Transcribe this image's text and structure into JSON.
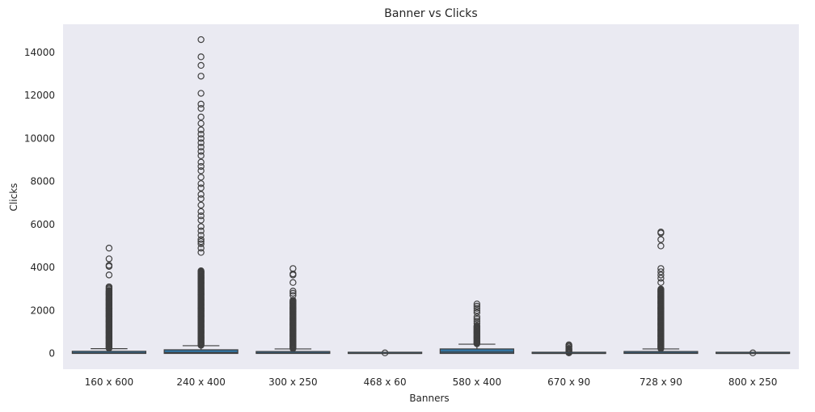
{
  "chart_data": {
    "type": "box",
    "title": "Banner vs Clicks",
    "xlabel": "Banners",
    "ylabel": "Clicks",
    "ylim": [
      -800,
      15000
    ],
    "yticks": [
      0,
      2000,
      4000,
      6000,
      8000,
      10000,
      12000,
      14000
    ],
    "grid": false,
    "categories": [
      "160 x 600",
      "240 x 400",
      "300 x 250",
      "468 x 60",
      "580 x 400",
      "670 x 90",
      "728 x 90",
      "800 x 250"
    ],
    "colors": {
      "plot_bg": "#eaeaf2",
      "box_fill": "#3274a1",
      "line": "#3f3f3f"
    },
    "boxes": [
      {
        "q1": 0,
        "median": 20,
        "q3": 100,
        "whisker_low": 0,
        "whisker_high": 220,
        "outlier_range": [
          240,
          2950
        ],
        "outliers": [
          3000,
          3050,
          3100,
          3650,
          4050,
          4100,
          4400,
          4900
        ]
      },
      {
        "q1": 0,
        "median": 40,
        "q3": 170,
        "whisker_low": 0,
        "whisker_high": 360,
        "outlier_range": [
          380,
          3850
        ],
        "outliers": [
          4700,
          4900,
          5100,
          5200,
          5300,
          5500,
          5700,
          5900,
          6200,
          6400,
          6600,
          6900,
          7200,
          7400,
          7700,
          7900,
          8200,
          8500,
          8700,
          8900,
          9200,
          9400,
          9600,
          9800,
          10000,
          10200,
          10400,
          10700,
          11000,
          11400,
          11600,
          12100,
          12900,
          13400,
          13800,
          14600
        ]
      },
      {
        "q1": 0,
        "median": 20,
        "q3": 90,
        "whisker_low": 0,
        "whisker_high": 210,
        "outlier_range": [
          230,
          2500
        ],
        "outliers": [
          2700,
          2800,
          2900,
          3300,
          3650,
          3700,
          3950
        ]
      },
      {
        "q1": 0,
        "median": 0,
        "q3": 10,
        "whisker_low": 0,
        "whisker_high": 20,
        "outlier_range": [
          25,
          40
        ],
        "outliers": []
      },
      {
        "q1": 0,
        "median": 60,
        "q3": 210,
        "whisker_low": 0,
        "whisker_high": 430,
        "outlier_range": [
          450,
          1300
        ],
        "outliers": [
          1400,
          1500,
          1600,
          1700,
          1900,
          2000,
          2100,
          2200,
          2300
        ]
      },
      {
        "q1": 0,
        "median": 0,
        "q3": 10,
        "whisker_low": 0,
        "whisker_high": 20,
        "outlier_range": [
          25,
          250
        ],
        "outliers": [
          300,
          350,
          400
        ]
      },
      {
        "q1": 0,
        "median": 20,
        "q3": 90,
        "whisker_low": 0,
        "whisker_high": 210,
        "outlier_range": [
          230,
          3000
        ],
        "outliers": [
          3300,
          3500,
          3650,
          3800,
          3950,
          5000,
          5300,
          5600,
          5650
        ]
      },
      {
        "q1": 0,
        "median": 0,
        "q3": 10,
        "whisker_low": 0,
        "whisker_high": 20,
        "outlier_range": [
          25,
          40
        ],
        "outliers": []
      }
    ]
  }
}
